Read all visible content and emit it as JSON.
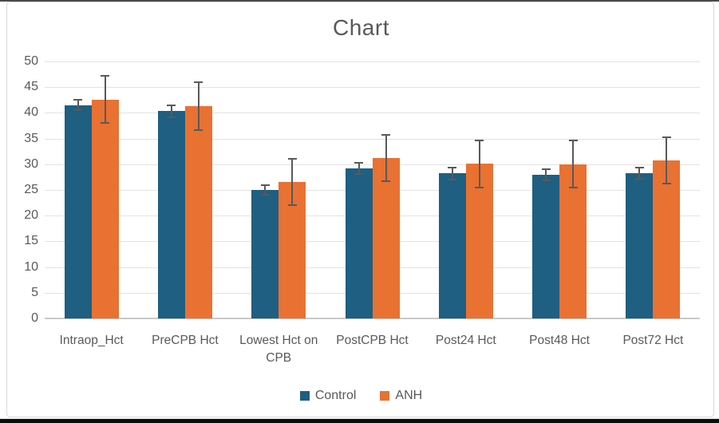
{
  "window": {
    "top_edge_color": "#4a4a4a",
    "bottom_edge_color": "#0b0b0b",
    "frame_border_color": "#d8d8d8"
  },
  "chart_data": {
    "type": "bar",
    "title": "Chart",
    "title_color": "#595959",
    "categories": [
      "Intraop_Hct",
      "PreCPB Hct",
      "Lowest Hct on CPB",
      "PostCPB Hct",
      "Post24 Hct",
      "Post48 Hct",
      "Post72 Hct"
    ],
    "series": [
      {
        "name": "Control",
        "color": "#1E5F82",
        "values": [
          41.5,
          40.3,
          25.0,
          29.2,
          28.2,
          28.0,
          28.3
        ],
        "errors": [
          1.0,
          1.1,
          1.0,
          1.1,
          1.2,
          1.1,
          1.1
        ]
      },
      {
        "name": "ANH",
        "color": "#E97132",
        "values": [
          42.6,
          41.3,
          26.6,
          31.2,
          30.1,
          30.0,
          30.8
        ],
        "errors": [
          4.6,
          4.6,
          4.5,
          4.5,
          4.6,
          4.6,
          4.5
        ]
      }
    ],
    "xlabel": "",
    "ylabel": "",
    "ylim": [
      0,
      50
    ],
    "ytick_step": 5,
    "ytick_labels": [
      "0",
      "5",
      "10",
      "15",
      "20",
      "25",
      "30",
      "35",
      "40",
      "45",
      "50"
    ],
    "grid": true,
    "gridline_color": "#e2e2e2",
    "error_bar_color": "#595959",
    "legend_position": "bottom",
    "legend_labels": [
      "Control",
      "ANH"
    ]
  }
}
